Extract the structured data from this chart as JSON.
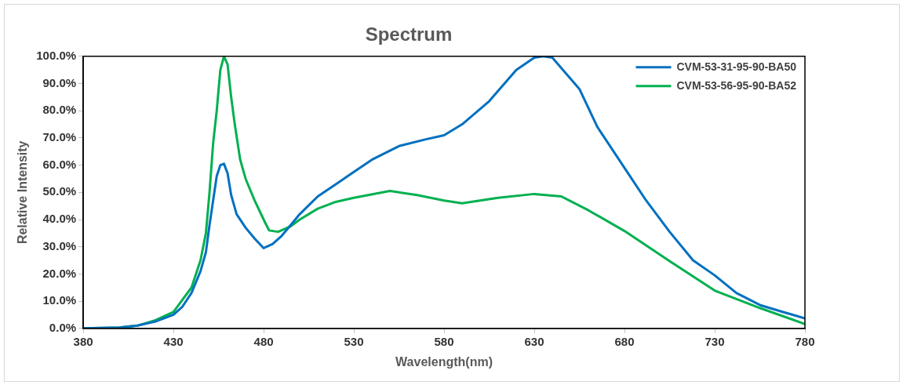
{
  "chart_data": {
    "type": "line",
    "title": "Spectrum",
    "xlabel": "Wavelength(nm)",
    "ylabel": "Relative Intensity",
    "xlim": [
      380,
      780
    ],
    "xticks": [
      380,
      430,
      480,
      530,
      580,
      630,
      680,
      730,
      780
    ],
    "ylim": [
      0,
      100
    ],
    "yticks": [
      {
        "value": 0,
        "label": "0.0%"
      },
      {
        "value": 10,
        "label": "10.0%"
      },
      {
        "value": 20,
        "label": "20.0%"
      },
      {
        "value": 30,
        "label": "30.0%"
      },
      {
        "value": 40,
        "label": "40.0%"
      },
      {
        "value": 50,
        "label": "50.0%"
      },
      {
        "value": 60,
        "label": "60.0%"
      },
      {
        "value": 70,
        "label": "70.0%"
      },
      {
        "value": 80,
        "label": "80.0%"
      },
      {
        "value": 90,
        "label": "90.0%"
      },
      {
        "value": 100,
        "label": "100.0%"
      }
    ],
    "grid": false,
    "legend": "top right",
    "marker": "none",
    "line_style": "solid",
    "series": [
      {
        "name": "CVM-53-31-95-90-BA50",
        "color": "#0070c0",
        "x": [
          380,
          400,
          410,
          420,
          430,
          435,
          440,
          445,
          448,
          450,
          452,
          454,
          456,
          458,
          460,
          462,
          465,
          470,
          475,
          480,
          485,
          490,
          495,
          500,
          510,
          520,
          530,
          540,
          555,
          570,
          580,
          590,
          605,
          620,
          630,
          635,
          640,
          655,
          665,
          680,
          692,
          705,
          718,
          730,
          742,
          755,
          768,
          780
        ],
        "values": [
          0,
          0.3,
          1,
          2.5,
          5,
          8,
          13,
          21,
          28,
          38,
          47,
          56,
          60,
          60.5,
          57,
          49,
          42,
          37,
          33,
          29.5,
          31,
          34,
          38,
          42,
          48.5,
          53,
          57.5,
          62,
          67,
          69.5,
          71,
          75,
          83.5,
          95,
          99.5,
          100,
          99.5,
          88,
          74,
          59,
          47,
          35.5,
          25,
          19.5,
          13,
          8.6,
          6,
          3.7
        ]
      },
      {
        "name": "CVM-53-56-95-90-BA52",
        "color": "#00b050",
        "x": [
          380,
          400,
          410,
          420,
          430,
          440,
          445,
          448,
          450,
          452,
          454,
          456,
          458,
          460,
          462,
          464,
          467,
          470,
          475,
          480,
          483,
          488,
          495,
          500,
          510,
          520,
          530,
          550,
          565,
          580,
          590,
          610,
          630,
          645,
          660,
          680,
          705,
          730,
          755,
          780
        ],
        "values": [
          0,
          0.3,
          1,
          3,
          6,
          15,
          25,
          35,
          50,
          68,
          80,
          95,
          100,
          97,
          85,
          75,
          62,
          55,
          47,
          40,
          36,
          35.5,
          37.5,
          40,
          44,
          46.5,
          48,
          50.5,
          49,
          47,
          46,
          48,
          49.4,
          48.5,
          43.4,
          35.8,
          24.7,
          13.9,
          7.5,
          1.6
        ]
      }
    ]
  }
}
